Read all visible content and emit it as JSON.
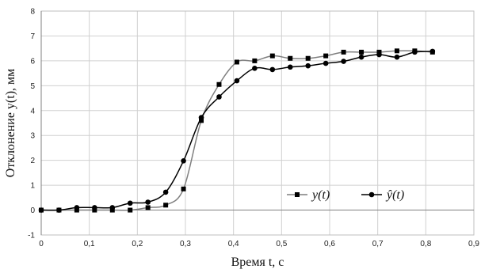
{
  "chart_data": {
    "type": "line",
    "xlabel": "Время t, с",
    "ylabel": "Отклонение y(t), мм",
    "xlim": [
      0,
      0.9
    ],
    "ylim": [
      -1,
      8
    ],
    "x_ticks": [
      "0",
      "0,1",
      "0,2",
      "0,3",
      "0,4",
      "0,5",
      "0,6",
      "0,7",
      "0,8",
      "0,9"
    ],
    "y_ticks": [
      "-1",
      "0",
      "1",
      "2",
      "3",
      "4",
      "5",
      "6",
      "7",
      "8"
    ],
    "x_tick_values": [
      0,
      0.1,
      0.2,
      0.3,
      0.4,
      0.5,
      0.6,
      0.7,
      0.8,
      0.9
    ],
    "y_tick_values": [
      -1,
      0,
      1,
      2,
      3,
      4,
      5,
      6,
      7,
      8
    ],
    "grid": true,
    "legend_position": "bottom-right",
    "series": [
      {
        "name": "y(t)",
        "marker": "square",
        "color": "#000000",
        "line_color": "#7f7f7f",
        "x": [
          0,
          0.037,
          0.074,
          0.111,
          0.148,
          0.185,
          0.222,
          0.259,
          0.296,
          0.333,
          0.37,
          0.407,
          0.444,
          0.481,
          0.518,
          0.555,
          0.592,
          0.629,
          0.666,
          0.703,
          0.74,
          0.777,
          0.814
        ],
        "y": [
          0,
          0,
          0,
          0,
          0,
          0,
          0.1,
          0.2,
          0.85,
          3.6,
          5.05,
          5.95,
          6.0,
          6.2,
          6.1,
          6.1,
          6.2,
          6.35,
          6.35,
          6.35,
          6.4,
          6.4,
          6.35
        ]
      },
      {
        "name": "ŷ(t)",
        "marker": "circle",
        "color": "#000000",
        "line_color": "#000000",
        "x": [
          0,
          0.037,
          0.074,
          0.111,
          0.148,
          0.185,
          0.222,
          0.259,
          0.296,
          0.333,
          0.37,
          0.407,
          0.444,
          0.481,
          0.518,
          0.555,
          0.592,
          0.629,
          0.666,
          0.703,
          0.74,
          0.777,
          0.814
        ],
        "y": [
          0,
          0,
          0.1,
          0.1,
          0.1,
          0.28,
          0.32,
          0.72,
          1.98,
          3.72,
          4.55,
          5.2,
          5.7,
          5.65,
          5.75,
          5.8,
          5.9,
          5.98,
          6.15,
          6.25,
          6.15,
          6.35,
          6.38
        ]
      }
    ]
  }
}
